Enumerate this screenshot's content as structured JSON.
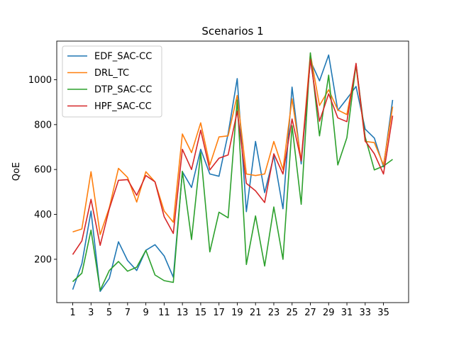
{
  "chart_data": {
    "type": "line",
    "title": "Scenarios 1",
    "xlabel": "",
    "ylabel": "QoE",
    "x": [
      1,
      2,
      3,
      4,
      5,
      6,
      7,
      8,
      9,
      10,
      11,
      12,
      13,
      14,
      15,
      16,
      17,
      18,
      19,
      20,
      21,
      22,
      23,
      24,
      25,
      26,
      27,
      28,
      29,
      30,
      31,
      32,
      33,
      34,
      35,
      36
    ],
    "xticks": [
      1,
      3,
      5,
      7,
      9,
      11,
      13,
      15,
      17,
      19,
      21,
      23,
      25,
      27,
      29,
      31,
      33,
      35
    ],
    "xlim": [
      -0.75,
      37.75
    ],
    "yticks": [
      200,
      400,
      600,
      800,
      1000
    ],
    "ylim": [
      7,
      1172
    ],
    "grid": false,
    "legend_position": "top-left",
    "series": [
      {
        "name": "EDF_SAC-CC",
        "color": "#1f77b4",
        "values": [
          65,
          180,
          415,
          57,
          115,
          278,
          195,
          150,
          240,
          265,
          215,
          120,
          590,
          520,
          690,
          580,
          570,
          760,
          1005,
          412,
          725,
          497,
          660,
          425,
          967,
          625,
          1085,
          995,
          1110,
          863,
          915,
          970,
          780,
          740,
          612,
          910
        ]
      },
      {
        "name": "DRL_TC",
        "color": "#ff7f0e",
        "values": [
          322,
          335,
          590,
          310,
          430,
          605,
          565,
          455,
          590,
          545,
          415,
          365,
          758,
          675,
          808,
          620,
          745,
          750,
          930,
          580,
          573,
          580,
          725,
          600,
          915,
          640,
          1115,
          885,
          955,
          865,
          845,
          1060,
          725,
          720,
          620,
          880
        ]
      },
      {
        "name": "DTP_SAC-CC",
        "color": "#2ca02c",
        "values": [
          100,
          138,
          330,
          62,
          150,
          190,
          147,
          165,
          240,
          130,
          105,
          97,
          592,
          288,
          675,
          233,
          410,
          385,
          910,
          177,
          393,
          170,
          433,
          200,
          795,
          445,
          1120,
          750,
          1020,
          620,
          742,
          1068,
          745,
          598,
          615,
          645
        ]
      },
      {
        "name": "HPF_SAC-CC",
        "color": "#d62728",
        "values": [
          221,
          282,
          467,
          262,
          425,
          552,
          555,
          485,
          573,
          545,
          390,
          315,
          690,
          600,
          775,
          598,
          650,
          665,
          860,
          538,
          505,
          453,
          670,
          580,
          825,
          638,
          1090,
          815,
          937,
          830,
          813,
          1073,
          727,
          670,
          580,
          840
        ]
      }
    ]
  }
}
